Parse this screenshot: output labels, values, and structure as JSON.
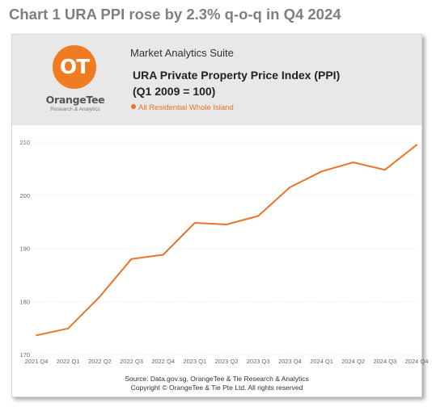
{
  "page_heading": "Chart 1 URA PPI rose by 2.3% q-o-q in Q4 2024",
  "header": {
    "logo_mark": "OT",
    "logo_brand": "OrangeTee",
    "logo_tagline": "Research & Analytics",
    "suite_label": "Market Analytics Suite"
  },
  "chart_data": {
    "type": "line",
    "title": "URA Private Property Price Index (PPI)",
    "subtitle": "(Q1 2009 = 100)",
    "xlabel": "",
    "ylabel": "",
    "categories": [
      "2021 Q4",
      "2022 Q1",
      "2022 Q2",
      "2022 Q3",
      "2022 Q4",
      "2023 Q1",
      "2023 Q2",
      "2023 Q3",
      "2023 Q4",
      "2024 Q1",
      "2024 Q2",
      "2024 Q3",
      "2024 Q4"
    ],
    "series": [
      {
        "name": "All Residential Whole Island",
        "values": [
          173.6,
          174.9,
          180.9,
          188.0,
          188.8,
          194.8,
          194.5,
          196.1,
          201.5,
          204.5,
          206.2,
          204.8,
          209.5
        ],
        "color": "#e8742a"
      }
    ],
    "ylim": [
      170,
      212
    ],
    "yticks": [
      170,
      180,
      190,
      200,
      210
    ],
    "grid": true,
    "legend_position": "top-left"
  },
  "footer": {
    "source_line": "Source: Data.gov.sg, OrangeTee & Tie Research & Analytics",
    "copyright_line": "Copyright © OrangeTee & Tie Pte Ltd. All rights reserved"
  },
  "colors": {
    "accent": "#f07c22",
    "series": "#e8742a",
    "heading": "#7f7f7f",
    "header_band": "#e8e8e8"
  }
}
